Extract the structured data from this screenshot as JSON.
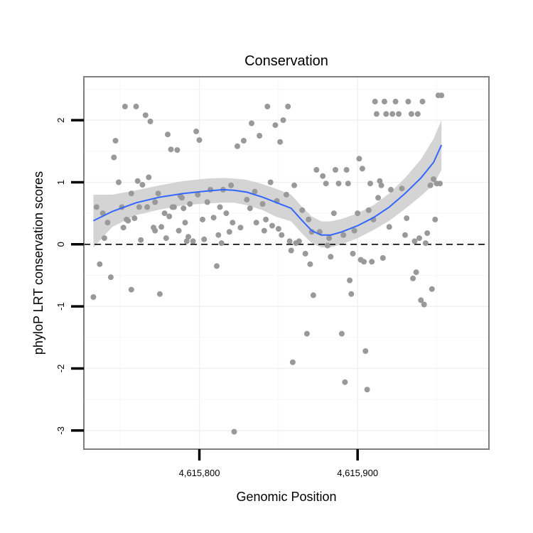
{
  "chart_data": {
    "type": "scatter",
    "title": "Conservation",
    "xlabel": "Genomic Position",
    "ylabel": "phyloP LRT conservation scores",
    "xlim": [
      4615727,
      4615983
    ],
    "ylim": [
      -3.3,
      2.7
    ],
    "x_ticks": [
      4615800,
      4615900
    ],
    "x_tick_labels": [
      "4,615,800",
      "4,615,900"
    ],
    "y_ticks": [
      -3,
      -2,
      -1,
      0,
      1,
      2
    ],
    "y_tick_labels": [
      "-3",
      "-2",
      "-1",
      "0",
      "1",
      "2"
    ],
    "grid": true,
    "reference_line": {
      "y": 0,
      "style": "dashed"
    },
    "colors": {
      "points": "#999999",
      "smooth": "#3366ff",
      "band": "#cccccc",
      "frame": "#7f7f7f"
    },
    "points": [
      [
        4615733,
        -0.85
      ],
      [
        4615735,
        0.6
      ],
      [
        4615737,
        -0.32
      ],
      [
        4615739,
        0.5
      ],
      [
        4615740,
        0.1
      ],
      [
        4615742,
        0.35
      ],
      [
        4615744,
        -0.53
      ],
      [
        4615746,
        1.4
      ],
      [
        4615747,
        1.67
      ],
      [
        4615749,
        1.0
      ],
      [
        4615751,
        0.6
      ],
      [
        4615752,
        0.27
      ],
      [
        4615753,
        2.22
      ],
      [
        4615754,
        0.4
      ],
      [
        4615755,
        0.38
      ],
      [
        4615757,
        -0.73
      ],
      [
        4615757,
        0.82
      ],
      [
        4615759,
        0.42
      ],
      [
        4615760,
        2.22
      ],
      [
        4615761,
        1.02
      ],
      [
        4615762,
        0.6
      ],
      [
        4615763,
        0.07
      ],
      [
        4615764,
        0.96
      ],
      [
        4615766,
        2.08
      ],
      [
        4615767,
        0.6
      ],
      [
        4615768,
        1.08
      ],
      [
        4615769,
        1.98
      ],
      [
        4615771,
        0.27
      ],
      [
        4615772,
        0.22
      ],
      [
        4615772,
        0.68
      ],
      [
        4615774,
        0.82
      ],
      [
        4615775,
        -0.8
      ],
      [
        4615776,
        0.28
      ],
      [
        4615778,
        0.5
      ],
      [
        4615779,
        0.1
      ],
      [
        4615780,
        1.77
      ],
      [
        4615781,
        0.45
      ],
      [
        4615782,
        1.53
      ],
      [
        4615783,
        0.6
      ],
      [
        4615784,
        0.6
      ],
      [
        4615786,
        1.52
      ],
      [
        4615787,
        0.22
      ],
      [
        4615788,
        0.78
      ],
      [
        4615789,
        0.75
      ],
      [
        4615790,
        0.58
      ],
      [
        4615791,
        0.35
      ],
      [
        4615792,
        0.05
      ],
      [
        4615793,
        0.12
      ],
      [
        4615794,
        0.65
      ],
      [
        4615796,
        0.05
      ],
      [
        4615798,
        1.82
      ],
      [
        4615799,
        0.8
      ],
      [
        4615800,
        1.68
      ],
      [
        4615802,
        0.4
      ],
      [
        4615803,
        0.08
      ],
      [
        4615805,
        0.68
      ],
      [
        4615807,
        0.88
      ],
      [
        4615809,
        0.43
      ],
      [
        4615811,
        -0.35
      ],
      [
        4615812,
        0.15
      ],
      [
        4615813,
        0.6
      ],
      [
        4615814,
        0.02
      ],
      [
        4615815,
        0.88
      ],
      [
        4615817,
        0.5
      ],
      [
        4615819,
        0.2
      ],
      [
        4615820,
        0.95
      ],
      [
        4615821,
        0.35
      ],
      [
        4615822,
        -3.02
      ],
      [
        4615824,
        1.58
      ],
      [
        4615826,
        0.27
      ],
      [
        4615828,
        1.67
      ],
      [
        4615830,
        0.72
      ],
      [
        4615832,
        0.58
      ],
      [
        4615833,
        1.95
      ],
      [
        4615835,
        0.85
      ],
      [
        4615836,
        0.35
      ],
      [
        4615838,
        1.75
      ],
      [
        4615840,
        0.65
      ],
      [
        4615841,
        0.22
      ],
      [
        4615842,
        0.4
      ],
      [
        4615843,
        2.22
      ],
      [
        4615845,
        1.0
      ],
      [
        4615846,
        0.3
      ],
      [
        4615848,
        1.92
      ],
      [
        4615849,
        0.7
      ],
      [
        4615850,
        0.25
      ],
      [
        4615851,
        1.65
      ],
      [
        4615852,
        0.15
      ],
      [
        4615853,
        2.0
      ],
      [
        4615855,
        0.8
      ],
      [
        4615856,
        2.22
      ],
      [
        4615857,
        0.05
      ],
      [
        4615858,
        -0.1
      ],
      [
        4615859,
        -1.9
      ],
      [
        4615860,
        0.95
      ],
      [
        4615861,
        0.02
      ],
      [
        4615863,
        0.05
      ],
      [
        4615865,
        0.55
      ],
      [
        4615867,
        -0.15
      ],
      [
        4615868,
        -1.44
      ],
      [
        4615869,
        0.4
      ],
      [
        4615870,
        -0.32
      ],
      [
        4615871,
        0.2
      ],
      [
        4615872,
        -0.82
      ],
      [
        4615874,
        1.2
      ],
      [
        4615876,
        0.2
      ],
      [
        4615878,
        1.1
      ],
      [
        4615880,
        0.98
      ],
      [
        4615881,
        -0.02
      ],
      [
        4615882,
        0.1
      ],
      [
        4615883,
        -0.2
      ],
      [
        4615885,
        0.5
      ],
      [
        4615886,
        1.2
      ],
      [
        4615888,
        0.98
      ],
      [
        4615890,
        -1.44
      ],
      [
        4615891,
        0.15
      ],
      [
        4615892,
        -2.22
      ],
      [
        4615893,
        1.2
      ],
      [
        4615894,
        0.98
      ],
      [
        4615895,
        -0.58
      ],
      [
        4615896,
        -0.8
      ],
      [
        4615897,
        -0.15
      ],
      [
        4615898,
        0.22
      ],
      [
        4615900,
        0.5
      ],
      [
        4615901,
        1.38
      ],
      [
        4615902,
        -0.25
      ],
      [
        4615903,
        1.22
      ],
      [
        4615904,
        -0.28
      ],
      [
        4615905,
        -1.72
      ],
      [
        4615906,
        -2.34
      ],
      [
        4615907,
        0.55
      ],
      [
        4615908,
        0.98
      ],
      [
        4615909,
        -0.28
      ],
      [
        4615910,
        0.4
      ],
      [
        4615911,
        2.3
      ],
      [
        4615912,
        2.1
      ],
      [
        4615913,
        0.75
      ],
      [
        4615914,
        1.02
      ],
      [
        4615915,
        0.95
      ],
      [
        4615916,
        -0.22
      ],
      [
        4615917,
        2.3
      ],
      [
        4615918,
        2.1
      ],
      [
        4615920,
        0.28
      ],
      [
        4615921,
        0.88
      ],
      [
        4615922,
        2.1
      ],
      [
        4615924,
        2.3
      ],
      [
        4615926,
        2.1
      ],
      [
        4615928,
        0.9
      ],
      [
        4615930,
        0.15
      ],
      [
        4615931,
        0.42
      ],
      [
        4615932,
        2.3
      ],
      [
        4615934,
        2.1
      ],
      [
        4615935,
        -0.55
      ],
      [
        4615936,
        0.05
      ],
      [
        4615937,
        -0.45
      ],
      [
        4615938,
        2.1
      ],
      [
        4615939,
        0.1
      ],
      [
        4615940,
        -0.9
      ],
      [
        4615941,
        2.3
      ],
      [
        4615942,
        -0.97
      ],
      [
        4615943,
        0.02
      ],
      [
        4615944,
        0.18
      ],
      [
        4615946,
        0.95
      ],
      [
        4615947,
        -0.72
      ],
      [
        4615948,
        1.05
      ],
      [
        4615949,
        0.4
      ],
      [
        4615950,
        0.98
      ],
      [
        4615951,
        2.4
      ],
      [
        4615952,
        0.98
      ],
      [
        4615953,
        2.4
      ]
    ],
    "smooth_line": [
      [
        4615733,
        0.38
      ],
      [
        4615745,
        0.53
      ],
      [
        4615760,
        0.67
      ],
      [
        4615775,
        0.76
      ],
      [
        4615790,
        0.82
      ],
      [
        4615805,
        0.86
      ],
      [
        4615815,
        0.88
      ],
      [
        4615822,
        0.87
      ],
      [
        4615830,
        0.84
      ],
      [
        4615840,
        0.76
      ],
      [
        4615848,
        0.68
      ],
      [
        4615858,
        0.58
      ],
      [
        4615865,
        0.38
      ],
      [
        4615871,
        0.22
      ],
      [
        4615877,
        0.15
      ],
      [
        4615883,
        0.15
      ],
      [
        4615890,
        0.2
      ],
      [
        4615900,
        0.3
      ],
      [
        4615910,
        0.43
      ],
      [
        4615920,
        0.6
      ],
      [
        4615930,
        0.82
      ],
      [
        4615940,
        1.07
      ],
      [
        4615948,
        1.32
      ],
      [
        4615953,
        1.6
      ]
    ],
    "smooth_upper": [
      [
        4615733,
        0.8
      ],
      [
        4615745,
        0.8
      ],
      [
        4615760,
        0.87
      ],
      [
        4615775,
        0.95
      ],
      [
        4615790,
        1.02
      ],
      [
        4615805,
        1.06
      ],
      [
        4615815,
        1.07
      ],
      [
        4615822,
        1.06
      ],
      [
        4615830,
        1.04
      ],
      [
        4615840,
        0.97
      ],
      [
        4615848,
        0.9
      ],
      [
        4615858,
        0.8
      ],
      [
        4615865,
        0.6
      ],
      [
        4615871,
        0.45
      ],
      [
        4615877,
        0.37
      ],
      [
        4615883,
        0.37
      ],
      [
        4615890,
        0.41
      ],
      [
        4615900,
        0.5
      ],
      [
        4615910,
        0.63
      ],
      [
        4615920,
        0.82
      ],
      [
        4615930,
        1.07
      ],
      [
        4615940,
        1.37
      ],
      [
        4615948,
        1.7
      ],
      [
        4615953,
        2.0
      ]
    ],
    "smooth_lower": [
      [
        4615733,
        -0.05
      ],
      [
        4615745,
        0.28
      ],
      [
        4615760,
        0.47
      ],
      [
        4615775,
        0.56
      ],
      [
        4615790,
        0.63
      ],
      [
        4615805,
        0.66
      ],
      [
        4615815,
        0.67
      ],
      [
        4615822,
        0.67
      ],
      [
        4615830,
        0.63
      ],
      [
        4615840,
        0.55
      ],
      [
        4615848,
        0.45
      ],
      [
        4615858,
        0.37
      ],
      [
        4615865,
        0.17
      ],
      [
        4615871,
        0.02
      ],
      [
        4615877,
        -0.05
      ],
      [
        4615883,
        -0.05
      ],
      [
        4615890,
        0.0
      ],
      [
        4615900,
        0.1
      ],
      [
        4615910,
        0.23
      ],
      [
        4615920,
        0.38
      ],
      [
        4615930,
        0.57
      ],
      [
        4615940,
        0.78
      ],
      [
        4615948,
        0.96
      ],
      [
        4615953,
        1.2
      ]
    ]
  }
}
